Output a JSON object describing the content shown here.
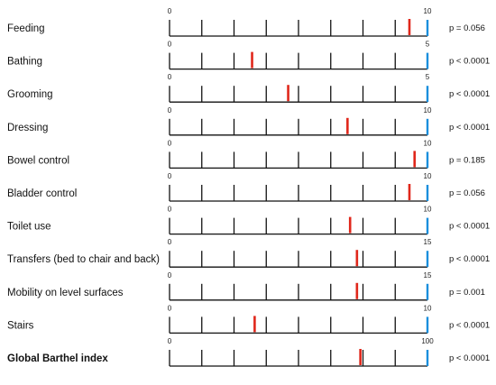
{
  "chart_data": {
    "type": "scatter",
    "title": "",
    "xlabel": "",
    "ylabel": "",
    "grid": false,
    "legend": "none",
    "colors": {
      "mean_marker": "#e0271b",
      "max_marker": "#1a8fdd",
      "axis": "#111111"
    },
    "rows": [
      {
        "label": "Feeding",
        "min": 0,
        "max": 10,
        "value": 9.3,
        "p": "p = 0.056",
        "bold": false
      },
      {
        "label": "Bathing",
        "min": 0,
        "max": 5,
        "value": 1.6,
        "p": "p < 0.0001",
        "bold": false
      },
      {
        "label": "Grooming",
        "min": 0,
        "max": 5,
        "value": 2.3,
        "p": "p < 0.0001",
        "bold": false
      },
      {
        "label": "Dressing",
        "min": 0,
        "max": 10,
        "value": 6.9,
        "p": "p < 0.0001",
        "bold": false
      },
      {
        "label": "Bowel control",
        "min": 0,
        "max": 10,
        "value": 9.5,
        "p": "p = 0.185",
        "bold": false
      },
      {
        "label": "Bladder control",
        "min": 0,
        "max": 10,
        "value": 9.3,
        "p": "p = 0.056",
        "bold": false
      },
      {
        "label": "Toilet use",
        "min": 0,
        "max": 10,
        "value": 7.0,
        "p": "p < 0.0001",
        "bold": false
      },
      {
        "label": "Transfers (bed to chair and back)",
        "min": 0,
        "max": 15,
        "value": 10.9,
        "p": "p < 0.0001",
        "bold": false
      },
      {
        "label": "Mobility on level surfaces",
        "min": 0,
        "max": 15,
        "value": 10.9,
        "p": "p = 0.001",
        "bold": false
      },
      {
        "label": "Stairs",
        "min": 0,
        "max": 10,
        "value": 3.3,
        "p": "p < 0.0001",
        "bold": false
      },
      {
        "label": "Global Barthel index",
        "min": 0,
        "max": 100,
        "value": 74,
        "p": "p < 0.0001",
        "bold": true
      }
    ]
  }
}
